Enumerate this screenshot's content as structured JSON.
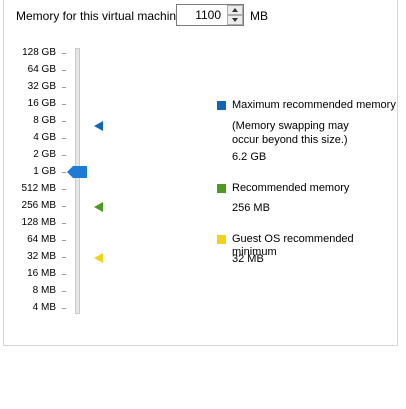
{
  "memory_label": "Memory for this virtual machine:",
  "memory_value": "1100",
  "memory_unit": "MB",
  "scale_labels": [
    "128 GB",
    "64 GB",
    "32 GB",
    "16 GB",
    "8 GB",
    "4 GB",
    "2 GB",
    "1 GB",
    "512 MB",
    "256 MB",
    "128 MB",
    "64 MB",
    "32 MB",
    "16 MB",
    "8 MB",
    "4 MB"
  ],
  "legend": {
    "maximum": {
      "title": "Maximum recommended memory",
      "note_line1": "(Memory swapping may",
      "note_line2": "occur beyond this size.)",
      "value": "6.2 GB",
      "color": "#1166b3"
    },
    "recommended": {
      "title": "Recommended memory",
      "value": "256 MB",
      "color": "#4e9a1e"
    },
    "minimum": {
      "title": "Guest OS recommended minimum",
      "value": "32 MB",
      "color": "#f2d21b"
    }
  },
  "slider_color": "#1c7bd6"
}
